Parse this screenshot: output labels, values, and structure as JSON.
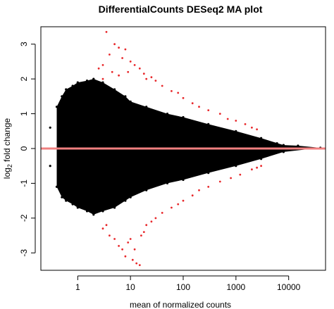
{
  "chart_data": {
    "type": "scatter",
    "title": "DifferentialCounts DESeq2 MA plot",
    "xlabel": "mean of normalized counts",
    "ylabel": "log2 fold change",
    "ylabel_parts": {
      "base": "log",
      "subscript": "2",
      "rest": " fold change"
    },
    "x_scale": "log",
    "xlim": [
      0.2,
      50000
    ],
    "ylim": [
      -3.5,
      3.5
    ],
    "x_ticks": [
      1,
      10,
      100,
      1000,
      10000
    ],
    "x_tick_labels": [
      "1",
      "10",
      "100",
      "1000",
      "10000"
    ],
    "y_ticks": [
      -3,
      -2,
      -1,
      0,
      1,
      2,
      3
    ],
    "y_tick_labels": [
      "-3",
      "-2",
      "-1",
      "0",
      "1",
      "2",
      "3"
    ],
    "grid": false,
    "legend": "none",
    "reference_line": {
      "y": 0,
      "color": "#f08080"
    },
    "series": [
      {
        "color": "#000000",
        "description_envelope": "funnel cloud of non-significant genes",
        "points": [
          [
            0.4,
            1.2
          ],
          [
            0.4,
            -1.1
          ],
          [
            0.5,
            1.5
          ],
          [
            0.5,
            -1.4
          ],
          [
            0.6,
            1.7
          ],
          [
            0.6,
            -1.5
          ],
          [
            0.8,
            1.8
          ],
          [
            0.8,
            -1.6
          ],
          [
            1,
            1.9
          ],
          [
            1,
            -1.7
          ],
          [
            1.5,
            1.95
          ],
          [
            1.5,
            -1.8
          ],
          [
            2,
            2.0
          ],
          [
            2,
            -1.9
          ],
          [
            3,
            1.9
          ],
          [
            3,
            -1.8
          ],
          [
            5,
            1.7
          ],
          [
            5,
            -1.7
          ],
          [
            8,
            1.5
          ],
          [
            8,
            -1.5
          ],
          [
            10,
            1.35
          ],
          [
            10,
            -1.4
          ],
          [
            20,
            1.2
          ],
          [
            20,
            -1.2
          ],
          [
            50,
            1.0
          ],
          [
            50,
            -1.0
          ],
          [
            100,
            0.9
          ],
          [
            100,
            -0.9
          ],
          [
            300,
            0.7
          ],
          [
            300,
            -0.7
          ],
          [
            1000,
            0.5
          ],
          [
            1000,
            -0.5
          ],
          [
            3000,
            0.3
          ],
          [
            3000,
            -0.3
          ],
          [
            8000,
            0.1
          ],
          [
            8000,
            -0.1
          ],
          [
            15000,
            0.08
          ],
          [
            40000,
            0.02
          ],
          [
            0.3,
            0.6
          ],
          [
            0.3,
            -0.5
          ],
          [
            0.7,
            0.0
          ],
          [
            2,
            0.5
          ],
          [
            20,
            -0.5
          ],
          [
            200,
            0.2
          ],
          [
            6000,
            0.15
          ],
          [
            12000,
            0.05
          ]
        ]
      },
      {
        "color": "#e8282b",
        "points": [
          [
            3.5,
            3.35
          ],
          [
            5,
            3.0
          ],
          [
            6,
            2.9
          ],
          [
            8,
            2.85
          ],
          [
            4,
            2.7
          ],
          [
            7,
            2.6
          ],
          [
            10,
            2.5
          ],
          [
            12,
            2.4
          ],
          [
            15,
            2.3
          ],
          [
            3,
            2.4
          ],
          [
            2.5,
            2.3
          ],
          [
            4.5,
            2.2
          ],
          [
            9,
            2.2
          ],
          [
            18,
            2.15
          ],
          [
            25,
            2.05
          ],
          [
            30,
            1.95
          ],
          [
            20,
            2.0
          ],
          [
            6,
            2.1
          ],
          [
            3,
            2.0
          ],
          [
            40,
            1.8
          ],
          [
            60,
            1.65
          ],
          [
            80,
            1.6
          ],
          [
            100,
            1.45
          ],
          [
            150,
            1.3
          ],
          [
            200,
            1.2
          ],
          [
            300,
            1.1
          ],
          [
            500,
            1.0
          ],
          [
            700,
            0.85
          ],
          [
            1000,
            0.8
          ],
          [
            1500,
            0.7
          ],
          [
            2000,
            0.6
          ],
          [
            2500,
            0.55
          ],
          [
            3,
            -2.3
          ],
          [
            3.5,
            -2.2
          ],
          [
            4,
            -2.5
          ],
          [
            5,
            -2.6
          ],
          [
            6,
            -2.8
          ],
          [
            7,
            -2.9
          ],
          [
            8,
            -3.1
          ],
          [
            9,
            -2.7
          ],
          [
            10,
            -2.6
          ],
          [
            11,
            -3.2
          ],
          [
            13,
            -3.3
          ],
          [
            15,
            -3.35
          ],
          [
            12,
            -2.9
          ],
          [
            16,
            -2.5
          ],
          [
            18,
            -2.4
          ],
          [
            20,
            -2.2
          ],
          [
            25,
            -2.1
          ],
          [
            30,
            -2.0
          ],
          [
            40,
            -1.85
          ],
          [
            60,
            -1.7
          ],
          [
            80,
            -1.6
          ],
          [
            100,
            -1.5
          ],
          [
            150,
            -1.35
          ],
          [
            200,
            -1.2
          ],
          [
            300,
            -1.1
          ],
          [
            500,
            -0.95
          ],
          [
            800,
            -0.85
          ],
          [
            1200,
            -0.75
          ],
          [
            2000,
            -0.6
          ],
          [
            2500,
            -0.55
          ],
          [
            3000,
            -0.5
          ]
        ]
      }
    ]
  }
}
